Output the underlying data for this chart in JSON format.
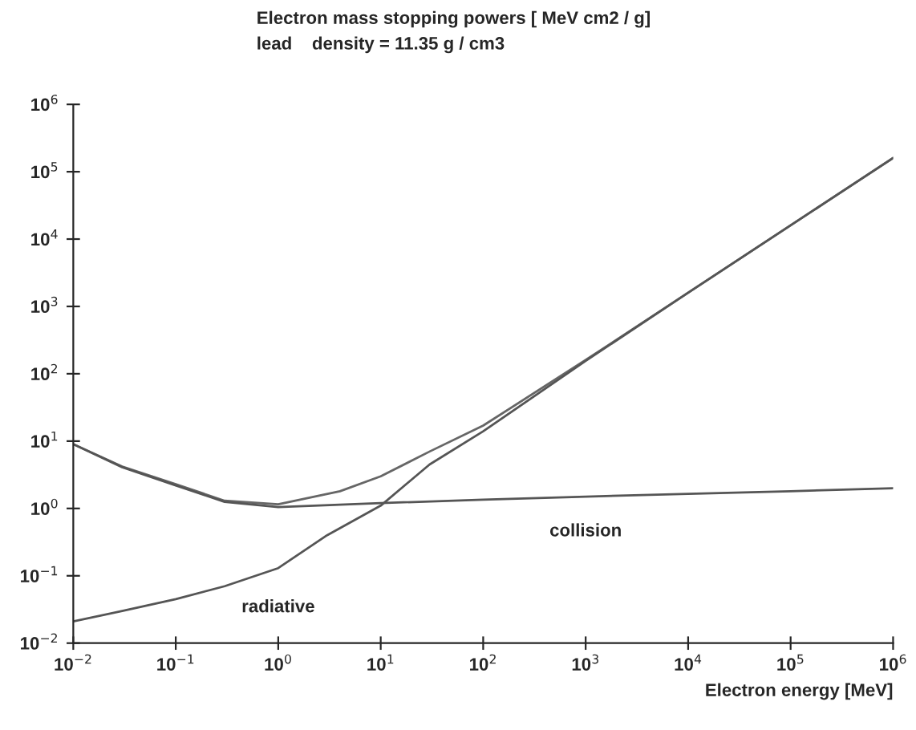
{
  "chart_data": {
    "type": "line",
    "title": "Electron mass stopping powers [ MeV cm2 / g]",
    "subtitle": "lead    density = 11.35 g / cm3",
    "xlabel": "Electron energy [MeV]",
    "log": "xy",
    "grid": false,
    "legend": false,
    "marker": "none",
    "line_style": "solid",
    "xlim": [
      0.01,
      1000000
    ],
    "ylim": [
      0.01,
      1000000
    ],
    "xticks": [
      {
        "value": 0.01,
        "label": "10$^{−2}$"
      },
      {
        "value": 0.1,
        "label": "10$^{−1}$"
      },
      {
        "value": 1,
        "label": "10$^{0}$"
      },
      {
        "value": 10,
        "label": "10$^{1}$"
      },
      {
        "value": 100,
        "label": "10$^{2}$"
      },
      {
        "value": 1000,
        "label": "10$^{3}$"
      },
      {
        "value": 10000,
        "label": "10$^{4}$"
      },
      {
        "value": 100000,
        "label": "10$^{5}$"
      },
      {
        "value": 1000000,
        "label": "10$^{6}$"
      }
    ],
    "yticks": [
      {
        "value": 0.01,
        "label": "10$^{−2}$"
      },
      {
        "value": 0.1,
        "label": "10$^{−1}$"
      },
      {
        "value": 1,
        "label": "10$^{0}$"
      },
      {
        "value": 10,
        "label": "10$^{1}$"
      },
      {
        "value": 100,
        "label": "10$^{2}$"
      },
      {
        "value": 1000,
        "label": "10$^{3}$"
      },
      {
        "value": 10000,
        "label": "10$^{4}$"
      },
      {
        "value": 100000,
        "label": "10$^{5}$"
      },
      {
        "value": 1000000,
        "label": "10$^{6}$"
      }
    ],
    "series": [
      {
        "color": "#666666",
        "x": [
          0.01,
          0.03,
          0.1,
          0.3,
          1,
          4,
          10,
          30,
          100,
          1000,
          10000,
          100000,
          1000000
        ],
        "values": [
          9,
          4.2,
          2.3,
          1.3,
          1.15,
          1.8,
          3,
          7,
          17,
          160,
          1600,
          16000,
          160000
        ]
      },
      {
        "name": "collision",
        "color": "#555555",
        "x": [
          0.01,
          0.03,
          0.1,
          0.3,
          1,
          10,
          100,
          1000,
          10000,
          100000,
          1000000
        ],
        "values": [
          9,
          4.1,
          2.2,
          1.25,
          1.05,
          1.2,
          1.35,
          1.5,
          1.65,
          1.8,
          2
        ]
      },
      {
        "name": "radiative",
        "color": "#555555",
        "x": [
          0.01,
          0.03,
          0.1,
          0.3,
          1,
          3,
          10,
          30,
          100,
          1000,
          10000,
          100000,
          1000000
        ],
        "values": [
          0.021,
          0.03,
          0.045,
          0.07,
          0.13,
          0.4,
          1.1,
          4.5,
          14,
          155,
          1600,
          16000,
          160000
        ]
      }
    ]
  }
}
